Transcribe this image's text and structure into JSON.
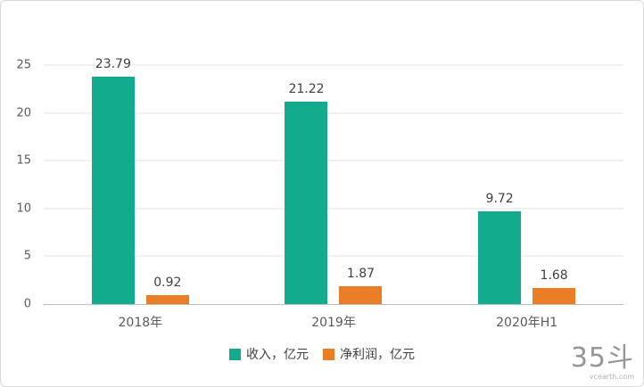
{
  "chart_data": {
    "type": "bar",
    "title": "",
    "xlabel": "",
    "ylabel": "",
    "categories": [
      "2018年",
      "2019年",
      "2020年H1"
    ],
    "series": [
      {
        "name": "收入，亿元",
        "color": "#12ab8d",
        "values": [
          23.79,
          21.22,
          9.72
        ]
      },
      {
        "name": "净利润，亿元",
        "color": "#e97e27",
        "values": [
          0.92,
          1.87,
          1.68
        ]
      }
    ],
    "ylim": [
      0,
      25
    ],
    "yticks": [
      0,
      5,
      10,
      15,
      20,
      25
    ],
    "grid": true,
    "legend_position": "bottom"
  },
  "watermark": {
    "logo": "35斗",
    "url": "vcearth.com"
  }
}
